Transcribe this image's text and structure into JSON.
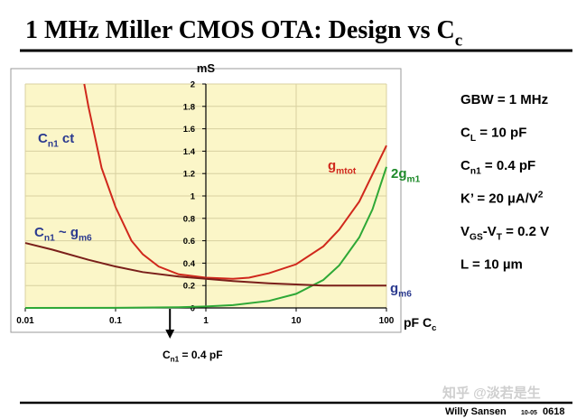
{
  "title": [
    "1 MHz Miller CMOS OTA: Design vs C",
    {
      "sub": "c"
    }
  ],
  "chart_data": {
    "type": "line",
    "log_x": true,
    "grid": true,
    "xlim": [
      0.01,
      100
    ],
    "xticks": [
      0.01,
      0.1,
      1,
      10,
      100
    ],
    "ylim": [
      0,
      2
    ],
    "yticks": [
      0,
      0.2,
      0.4,
      0.6,
      0.8,
      1,
      1.2,
      1.4,
      1.6,
      1.8,
      2
    ],
    "ylabel": "mS",
    "xlabel": [
      "pF  C",
      {
        "sub": "c"
      }
    ],
    "series": [
      {
        "name": [
          "g",
          {
            "sub": "mtot"
          }
        ],
        "color": "#d0281c",
        "x": [
          0.045,
          0.05,
          0.07,
          0.1,
          0.15,
          0.2,
          0.3,
          0.5,
          1,
          2,
          3,
          5,
          10,
          20,
          30,
          50,
          100
        ],
        "values": [
          2.0,
          1.8,
          1.25,
          0.9,
          0.6,
          0.48,
          0.37,
          0.3,
          0.27,
          0.26,
          0.27,
          0.31,
          0.39,
          0.55,
          0.7,
          0.95,
          1.45
        ]
      },
      {
        "name": [
          "2g",
          {
            "sub": "m1"
          }
        ],
        "color": "#2ea836",
        "label_color": "#1e8a2a",
        "x": [
          0.01,
          0.1,
          0.5,
          1,
          2,
          5,
          10,
          20,
          30,
          50,
          70,
          100
        ],
        "values": [
          0,
          0.001,
          0.006,
          0.013,
          0.025,
          0.063,
          0.126,
          0.25,
          0.38,
          0.63,
          0.88,
          1.26
        ]
      },
      {
        "name": [
          "g",
          {
            "sub": "m6"
          }
        ],
        "color": "#7a1f1a",
        "label_color": "#2b3a8f",
        "x": [
          0.01,
          0.02,
          0.05,
          0.1,
          0.2,
          0.5,
          1,
          2,
          5,
          10,
          20,
          100
        ],
        "values": [
          0.58,
          0.52,
          0.43,
          0.37,
          0.32,
          0.28,
          0.26,
          0.24,
          0.22,
          0.21,
          0.2,
          0.2
        ]
      }
    ],
    "annotations": [
      {
        "parts": [
          "C",
          {
            "sub": "n1"
          },
          " ct"
        ],
        "color": "#2b3a8f"
      },
      {
        "parts": [
          "C",
          {
            "sub": "n1"
          },
          " ~ g",
          {
            "sub": "m6"
          }
        ],
        "color": "#2b3a8f"
      },
      {
        "parts": [
          "C",
          {
            "sub": "n1"
          },
          " = 0.4 pF"
        ],
        "color": "#000000",
        "arrow_x": 0.4
      }
    ]
  },
  "specs": [
    [
      "GBW = 1 MHz"
    ],
    [
      "C",
      {
        "sub": "L"
      },
      " = 10 pF"
    ],
    [
      "C",
      {
        "sub": "n1"
      },
      " = 0.4 pF"
    ],
    [
      "K’ =  20 µA/V",
      {
        "sup": "2"
      }
    ],
    [
      "V",
      {
        "sub": "GS"
      },
      "-V",
      {
        "sub": "T"
      },
      " =  0.2 V"
    ],
    [
      "L  = 10 µm"
    ]
  ],
  "footer": {
    "author": "Willy Sansen",
    "date": "10-05",
    "page": "0618"
  },
  "watermark": "知乎 @淡若是生"
}
